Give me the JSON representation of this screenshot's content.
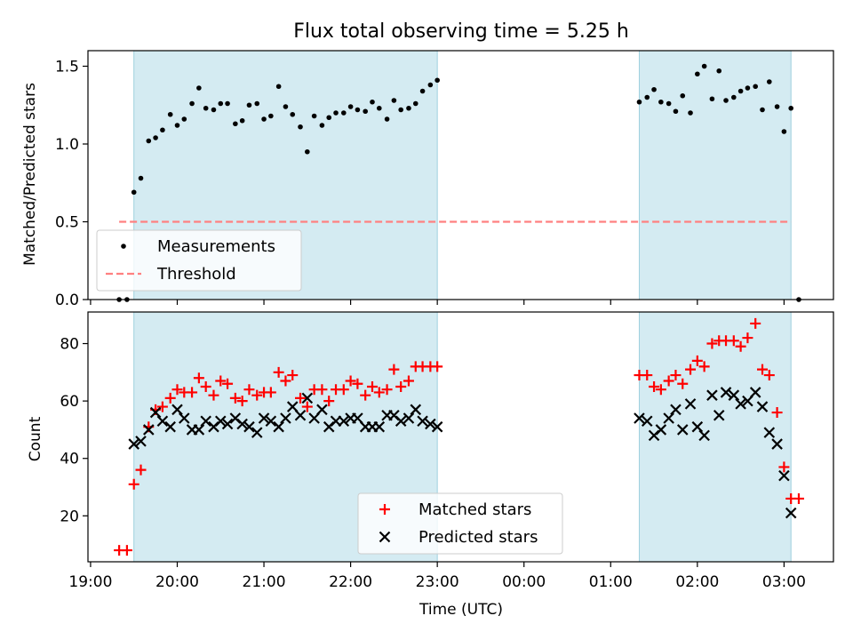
{
  "chart_data": {
    "title": "Flux total observing time = 5.25 h",
    "xlabel": "Time (UTC)",
    "x_unit": "hours UTC (continuous, >24 = next day)",
    "xlim": [
      18.97,
      27.57
    ],
    "x_ticks": [
      {
        "value": 19,
        "label": "19:00"
      },
      {
        "value": 20,
        "label": "20:00"
      },
      {
        "value": 21,
        "label": "21:00"
      },
      {
        "value": 22,
        "label": "22:00"
      },
      {
        "value": 23,
        "label": "23:00"
      },
      {
        "value": 24,
        "label": "00:00"
      },
      {
        "value": 25,
        "label": "01:00"
      },
      {
        "value": 26,
        "label": "02:00"
      },
      {
        "value": 27,
        "label": "03:00"
      }
    ],
    "shaded_intervals": [
      [
        19.5,
        23.0
      ],
      [
        25.33,
        27.08
      ]
    ],
    "shade_color": "#add8e6",
    "panels": [
      {
        "type": "scatter",
        "ylabel": "Matched/Predicted stars",
        "ylim": [
          0,
          1.6
        ],
        "y_ticks": [
          0.0,
          0.5,
          1.0,
          1.5
        ],
        "y_tick_labels": [
          "0.0",
          "0.5",
          "1.0",
          "1.5"
        ],
        "legend": {
          "position": "lower-left",
          "entries": [
            {
              "label": "Measurements",
              "marker": "dot",
              "color": "#000000"
            },
            {
              "label": "Threshold",
              "marker": "dashed-line",
              "color": "#ff8080"
            }
          ]
        },
        "threshold": {
          "name": "Threshold",
          "y": 0.5,
          "x_range": [
            19.33,
            27.08
          ],
          "color": "#ff8080"
        },
        "series": [
          {
            "name": "Measurements",
            "color": "#000000",
            "points": [
              [
                19.33,
                0.0
              ],
              [
                19.42,
                0.0
              ],
              [
                19.5,
                0.69
              ],
              [
                19.58,
                0.78
              ],
              [
                19.67,
                1.02
              ],
              [
                19.75,
                1.04
              ],
              [
                19.83,
                1.09
              ],
              [
                19.92,
                1.19
              ],
              [
                20.0,
                1.12
              ],
              [
                20.08,
                1.16
              ],
              [
                20.17,
                1.26
              ],
              [
                20.25,
                1.36
              ],
              [
                20.33,
                1.23
              ],
              [
                20.42,
                1.22
              ],
              [
                20.5,
                1.26
              ],
              [
                20.58,
                1.26
              ],
              [
                20.67,
                1.13
              ],
              [
                20.75,
                1.15
              ],
              [
                20.83,
                1.25
              ],
              [
                20.92,
                1.26
              ],
              [
                21.0,
                1.16
              ],
              [
                21.08,
                1.18
              ],
              [
                21.17,
                1.37
              ],
              [
                21.25,
                1.24
              ],
              [
                21.33,
                1.19
              ],
              [
                21.42,
                1.11
              ],
              [
                21.5,
                0.95
              ],
              [
                21.58,
                1.18
              ],
              [
                21.67,
                1.12
              ],
              [
                21.75,
                1.17
              ],
              [
                21.83,
                1.2
              ],
              [
                21.92,
                1.2
              ],
              [
                22.0,
                1.24
              ],
              [
                22.08,
                1.22
              ],
              [
                22.17,
                1.21
              ],
              [
                22.25,
                1.27
              ],
              [
                22.33,
                1.23
              ],
              [
                22.42,
                1.16
              ],
              [
                22.5,
                1.28
              ],
              [
                22.58,
                1.22
              ],
              [
                22.67,
                1.23
              ],
              [
                22.75,
                1.26
              ],
              [
                22.83,
                1.34
              ],
              [
                22.92,
                1.38
              ],
              [
                23.0,
                1.41
              ],
              [
                25.33,
                1.27
              ],
              [
                25.42,
                1.3
              ],
              [
                25.5,
                1.35
              ],
              [
                25.58,
                1.27
              ],
              [
                25.67,
                1.26
              ],
              [
                25.75,
                1.21
              ],
              [
                25.83,
                1.31
              ],
              [
                25.92,
                1.2
              ],
              [
                26.0,
                1.45
              ],
              [
                26.08,
                1.5
              ],
              [
                26.17,
                1.29
              ],
              [
                26.25,
                1.47
              ],
              [
                26.33,
                1.28
              ],
              [
                26.42,
                1.3
              ],
              [
                26.5,
                1.34
              ],
              [
                26.58,
                1.36
              ],
              [
                26.67,
                1.37
              ],
              [
                26.75,
                1.22
              ],
              [
                26.83,
                1.4
              ],
              [
                26.92,
                1.24
              ],
              [
                27.0,
                1.08
              ],
              [
                27.08,
                1.23
              ],
              [
                27.17,
                0.0
              ]
            ]
          }
        ]
      },
      {
        "type": "scatter",
        "ylabel": "Count",
        "ylim": [
          4,
          91
        ],
        "y_ticks": [
          20,
          40,
          60,
          80
        ],
        "y_tick_labels": [
          "20",
          "40",
          "60",
          "80"
        ],
        "legend": {
          "position": "lower-center",
          "entries": [
            {
              "label": "Matched stars",
              "marker": "plus",
              "color": "#ff0000"
            },
            {
              "label": "Predicted stars",
              "marker": "x",
              "color": "#000000"
            }
          ]
        },
        "series": [
          {
            "name": "Matched stars",
            "marker": "plus",
            "color": "#ff0000",
            "points": [
              [
                19.33,
                8
              ],
              [
                19.42,
                8
              ],
              [
                19.5,
                31
              ],
              [
                19.58,
                36
              ],
              [
                19.67,
                51
              ],
              [
                19.75,
                57
              ],
              [
                19.83,
                58
              ],
              [
                19.92,
                61
              ],
              [
                20.0,
                64
              ],
              [
                20.08,
                63
              ],
              [
                20.17,
                63
              ],
              [
                20.25,
                68
              ],
              [
                20.33,
                65
              ],
              [
                20.42,
                62
              ],
              [
                20.5,
                67
              ],
              [
                20.58,
                66
              ],
              [
                20.67,
                61
              ],
              [
                20.75,
                60
              ],
              [
                20.83,
                64
              ],
              [
                20.92,
                62
              ],
              [
                21.0,
                63
              ],
              [
                21.08,
                63
              ],
              [
                21.17,
                70
              ],
              [
                21.25,
                67
              ],
              [
                21.33,
                69
              ],
              [
                21.42,
                61
              ],
              [
                21.5,
                58
              ],
              [
                21.58,
                64
              ],
              [
                21.67,
                64
              ],
              [
                21.75,
                60
              ],
              [
                21.83,
                64
              ],
              [
                21.92,
                64
              ],
              [
                22.0,
                67
              ],
              [
                22.08,
                66
              ],
              [
                22.17,
                62
              ],
              [
                22.25,
                65
              ],
              [
                22.33,
                63
              ],
              [
                22.42,
                64
              ],
              [
                22.5,
                71
              ],
              [
                22.58,
                65
              ],
              [
                22.67,
                67
              ],
              [
                22.75,
                72
              ],
              [
                22.83,
                72
              ],
              [
                22.92,
                72
              ],
              [
                23.0,
                72
              ],
              [
                25.33,
                69
              ],
              [
                25.42,
                69
              ],
              [
                25.5,
                65
              ],
              [
                25.58,
                64
              ],
              [
                25.67,
                67
              ],
              [
                25.75,
                69
              ],
              [
                25.83,
                66
              ],
              [
                25.92,
                71
              ],
              [
                26.0,
                74
              ],
              [
                26.08,
                72
              ],
              [
                26.17,
                80
              ],
              [
                26.25,
                81
              ],
              [
                26.33,
                81
              ],
              [
                26.42,
                81
              ],
              [
                26.5,
                79
              ],
              [
                26.58,
                82
              ],
              [
                26.67,
                87
              ],
              [
                26.75,
                71
              ],
              [
                26.83,
                69
              ],
              [
                26.92,
                56
              ],
              [
                27.0,
                37
              ],
              [
                27.08,
                26
              ],
              [
                27.17,
                26
              ]
            ]
          },
          {
            "name": "Predicted stars",
            "marker": "x",
            "color": "#000000",
            "points": [
              [
                19.5,
                45
              ],
              [
                19.58,
                46
              ],
              [
                19.67,
                50
              ],
              [
                19.75,
                56
              ],
              [
                19.83,
                53
              ],
              [
                19.92,
                51
              ],
              [
                20.0,
                57
              ],
              [
                20.08,
                54
              ],
              [
                20.17,
                50
              ],
              [
                20.25,
                50
              ],
              [
                20.33,
                53
              ],
              [
                20.42,
                51
              ],
              [
                20.5,
                53
              ],
              [
                20.58,
                52
              ],
              [
                20.67,
                54
              ],
              [
                20.75,
                52
              ],
              [
                20.83,
                51
              ],
              [
                20.92,
                49
              ],
              [
                21.0,
                54
              ],
              [
                21.08,
                53
              ],
              [
                21.17,
                51
              ],
              [
                21.25,
                54
              ],
              [
                21.33,
                58
              ],
              [
                21.42,
                55
              ],
              [
                21.5,
                61
              ],
              [
                21.58,
                54
              ],
              [
                21.67,
                57
              ],
              [
                21.75,
                51
              ],
              [
                21.83,
                53
              ],
              [
                21.92,
                53
              ],
              [
                22.0,
                54
              ],
              [
                22.08,
                54
              ],
              [
                22.17,
                51
              ],
              [
                22.25,
                51
              ],
              [
                22.33,
                51
              ],
              [
                22.42,
                55
              ],
              [
                22.5,
                55
              ],
              [
                22.58,
                53
              ],
              [
                22.67,
                54
              ],
              [
                22.75,
                57
              ],
              [
                22.83,
                53
              ],
              [
                22.92,
                52
              ],
              [
                23.0,
                51
              ],
              [
                25.33,
                54
              ],
              [
                25.42,
                53
              ],
              [
                25.5,
                48
              ],
              [
                25.58,
                50
              ],
              [
                25.67,
                54
              ],
              [
                25.75,
                57
              ],
              [
                25.83,
                50
              ],
              [
                25.92,
                59
              ],
              [
                26.0,
                51
              ],
              [
                26.08,
                48
              ],
              [
                26.17,
                62
              ],
              [
                26.25,
                55
              ],
              [
                26.33,
                63
              ],
              [
                26.42,
                62
              ],
              [
                26.5,
                59
              ],
              [
                26.58,
                60
              ],
              [
                26.67,
                63
              ],
              [
                26.75,
                58
              ],
              [
                26.83,
                49
              ],
              [
                26.92,
                45
              ],
              [
                27.0,
                34
              ],
              [
                27.08,
                21
              ]
            ]
          }
        ]
      }
    ]
  }
}
